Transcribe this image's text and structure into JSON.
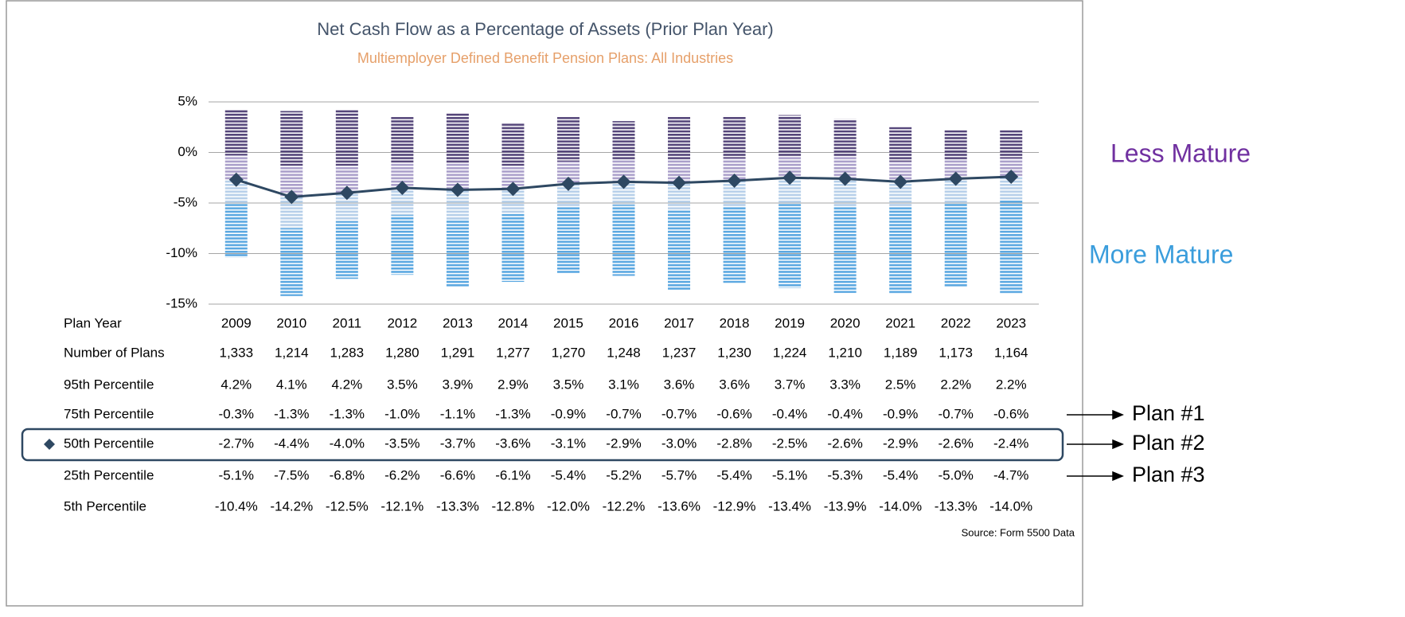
{
  "chart_data": {
    "type": "percentile_range",
    "title": "Net Cash Flow as a Percentage of Assets (Prior Plan Year)",
    "subtitle": "Multiemployer Defined Benefit Pension Plans: All Industries",
    "category_label": "Plan Year",
    "categories": [
      "2009",
      "2010",
      "2011",
      "2012",
      "2013",
      "2014",
      "2015",
      "2016",
      "2017",
      "2018",
      "2019",
      "2020",
      "2021",
      "2022",
      "2023"
    ],
    "plan_counts": {
      "name": "Number of Plans",
      "values": [
        "1,333",
        "1,214",
        "1,283",
        "1,280",
        "1,291",
        "1,277",
        "1,270",
        "1,248",
        "1,237",
        "1,230",
        "1,224",
        "1,210",
        "1,189",
        "1,173",
        "1,164"
      ]
    },
    "series": [
      {
        "name": "95th Percentile",
        "values": [
          4.2,
          4.1,
          4.2,
          3.5,
          3.9,
          2.9,
          3.5,
          3.1,
          3.6,
          3.6,
          3.7,
          3.3,
          2.5,
          2.2,
          2.2
        ],
        "value_labels": [
          "4.2%",
          "4.1%",
          "4.2%",
          "3.5%",
          "3.9%",
          "2.9%",
          "3.5%",
          "3.1%",
          "3.6%",
          "3.6%",
          "3.7%",
          "3.3%",
          "2.5%",
          "2.2%",
          "2.2%"
        ]
      },
      {
        "name": "75th Percentile",
        "values": [
          -0.3,
          -1.3,
          -1.3,
          -1.0,
          -1.1,
          -1.3,
          -0.9,
          -0.7,
          -0.7,
          -0.6,
          -0.4,
          -0.4,
          -0.9,
          -0.7,
          -0.6
        ],
        "value_labels": [
          "-0.3%",
          "-1.3%",
          "-1.3%",
          "-1.0%",
          "-1.1%",
          "-1.3%",
          "-0.9%",
          "-0.7%",
          "-0.7%",
          "-0.6%",
          "-0.4%",
          "-0.4%",
          "-0.9%",
          "-0.7%",
          "-0.6%"
        ]
      },
      {
        "name": "50th Percentile",
        "color": "#2e4862",
        "marker": "diamond",
        "values": [
          -2.7,
          -4.4,
          -4.0,
          -3.5,
          -3.7,
          -3.6,
          -3.1,
          -2.9,
          -3.0,
          -2.8,
          -2.5,
          -2.6,
          -2.9,
          -2.6,
          -2.4
        ],
        "value_labels": [
          "-2.7%",
          "-4.4%",
          "-4.0%",
          "-3.5%",
          "-3.7%",
          "-3.6%",
          "-3.1%",
          "-2.9%",
          "-3.0%",
          "-2.8%",
          "-2.5%",
          "-2.6%",
          "-2.9%",
          "-2.6%",
          "-2.4%"
        ]
      },
      {
        "name": "25th Percentile",
        "values": [
          -5.1,
          -7.5,
          -6.8,
          -6.2,
          -6.6,
          -6.1,
          -5.4,
          -5.2,
          -5.7,
          -5.4,
          -5.1,
          -5.3,
          -5.4,
          -5.0,
          -4.7
        ],
        "value_labels": [
          "-5.1%",
          "-7.5%",
          "-6.8%",
          "-6.2%",
          "-6.6%",
          "-6.1%",
          "-5.4%",
          "-5.2%",
          "-5.7%",
          "-5.4%",
          "-5.1%",
          "-5.3%",
          "-5.4%",
          "-5.0%",
          "-4.7%"
        ]
      },
      {
        "name": "5th Percentile",
        "values": [
          -10.4,
          -14.2,
          -12.5,
          -12.1,
          -13.3,
          -12.8,
          -12.0,
          -12.2,
          -13.6,
          -12.9,
          -13.4,
          -13.9,
          -14.0,
          -13.3,
          -14.0
        ],
        "value_labels": [
          "-10.4%",
          "-14.2%",
          "-12.5%",
          "-12.1%",
          "-13.3%",
          "-12.8%",
          "-12.0%",
          "-12.2%",
          "-13.6%",
          "-12.9%",
          "-13.4%",
          "-13.9%",
          "-14.0%",
          "-13.3%",
          "-14.0%"
        ]
      }
    ],
    "band_colors": [
      "#55467a",
      "#aa9fca",
      "#b6cfe9",
      "#5ba8e1"
    ],
    "ylim": [
      -15,
      5
    ],
    "yticks": [
      {
        "value": 5,
        "label": "5%"
      },
      {
        "value": 0,
        "label": "0%"
      },
      {
        "value": -5,
        "label": "-5%"
      },
      {
        "value": -10,
        "label": "-10%"
      },
      {
        "value": -15,
        "label": "-15%"
      }
    ],
    "grid": true,
    "annotations": [
      "Less Mature",
      "More Mature",
      "Plan #1",
      "Plan #2",
      "Plan #3"
    ],
    "source": "Source:  Form 5500 Data"
  }
}
